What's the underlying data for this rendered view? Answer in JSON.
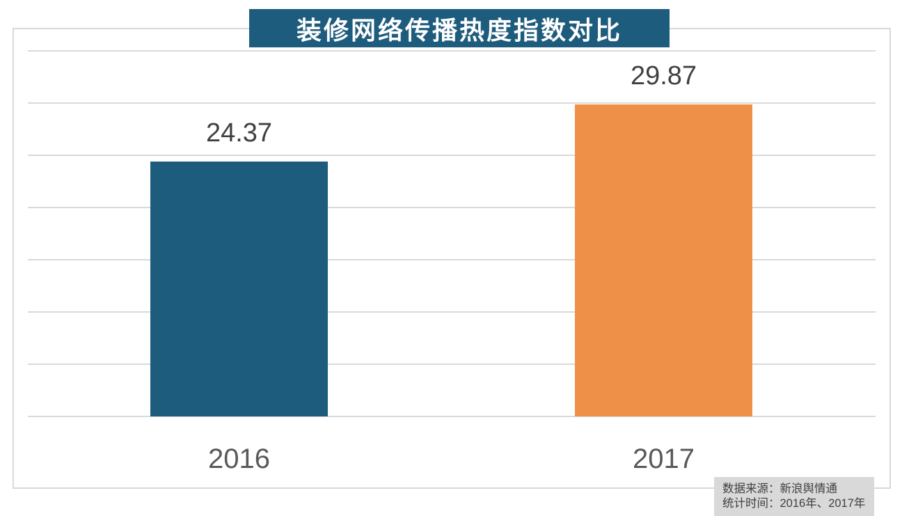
{
  "page": {
    "background_color": "#FFFFFF",
    "frame_border_color": "#D9D9D9"
  },
  "title_banner": {
    "text": "装修网络传播热度指数对比",
    "bg_color": "#1E5C7D",
    "text_color": "#FFFFFF"
  },
  "chart_data": {
    "type": "bar",
    "title": "装修网络传播热度指数对比",
    "categories": [
      "2016",
      "2017"
    ],
    "values": [
      24.37,
      29.87
    ],
    "value_labels": [
      "24.37",
      "29.87"
    ],
    "bar_colors": [
      "#1E5C7D",
      "#EF9049"
    ],
    "ylim": [
      0,
      35
    ],
    "y_tick_step": 5,
    "grid": "horizontal",
    "gridline_color": "#D9D9D9",
    "y_tick_labels_visible": false,
    "x_tick_labels": [
      "2016",
      "2017"
    ],
    "legend": "none",
    "value_label_color": "#404040",
    "category_label_color": "#595959",
    "xlabel": "",
    "ylabel": ""
  },
  "source_note": {
    "line1": "数据来源：新浪舆情通",
    "line2": "统计时间：2016年、2017年",
    "bg_color": "#D9D9D9",
    "text_color": "#404040"
  }
}
